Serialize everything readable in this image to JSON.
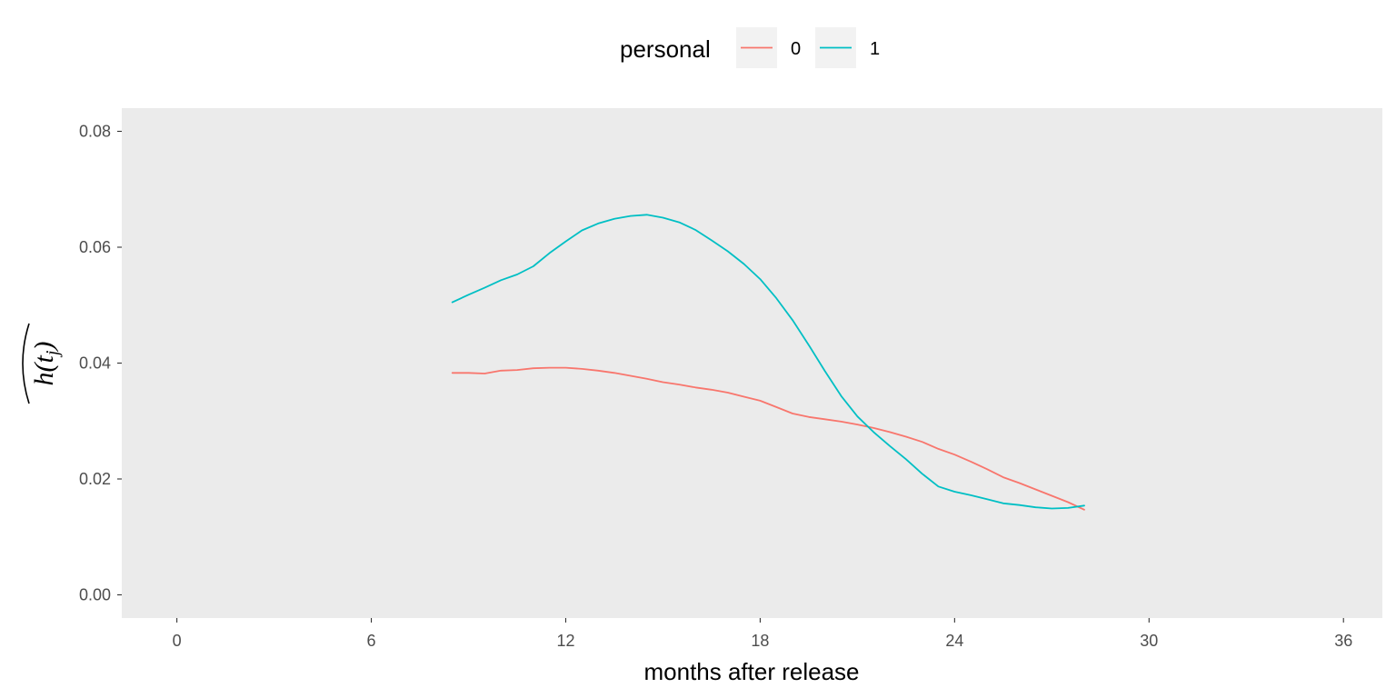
{
  "chart_data": {
    "type": "line",
    "title": "",
    "xlabel": "months after release",
    "ylabel": "h(t_j) hat",
    "xlim": [
      -1.7,
      37.2
    ],
    "ylim": [
      -0.004,
      0.084
    ],
    "x_ticks": [
      0,
      6,
      12,
      18,
      24,
      30,
      36
    ],
    "y_ticks": [
      0.0,
      0.02,
      0.04,
      0.06,
      0.08
    ],
    "y_tick_labels": [
      "0.00",
      "0.02",
      "0.04",
      "0.06",
      "0.08"
    ],
    "grid": false,
    "legend": {
      "title": "personal",
      "position": "top"
    },
    "series": [
      {
        "name": "0",
        "color": "#F8766D",
        "x": [
          8.5,
          9.0,
          9.5,
          10.0,
          10.5,
          11.0,
          11.5,
          12.0,
          12.5,
          13.0,
          13.5,
          14.0,
          14.5,
          15.0,
          15.5,
          16.0,
          16.5,
          17.0,
          17.5,
          18.0,
          18.5,
          19.0,
          19.5,
          20.0,
          20.5,
          21.0,
          21.5,
          22.0,
          22.5,
          23.0,
          23.5,
          24.0,
          24.5,
          25.0,
          25.5,
          26.0,
          26.5,
          27.0,
          27.5,
          28.0
        ],
        "y": [
          0.0383,
          0.0383,
          0.0382,
          0.0387,
          0.0388,
          0.0391,
          0.0392,
          0.0392,
          0.039,
          0.0387,
          0.0383,
          0.0378,
          0.0373,
          0.0367,
          0.0363,
          0.0358,
          0.0354,
          0.0349,
          0.0342,
          0.0335,
          0.0324,
          0.0313,
          0.0307,
          0.0303,
          0.0299,
          0.0294,
          0.0288,
          0.0281,
          0.0273,
          0.0264,
          0.0252,
          0.0242,
          0.023,
          0.0217,
          0.0203,
          0.0193,
          0.0182,
          0.0171,
          0.016,
          0.0147
        ]
      },
      {
        "name": "1",
        "color": "#00BFC4",
        "x": [
          8.5,
          9.0,
          9.5,
          10.0,
          10.5,
          11.0,
          11.5,
          12.0,
          12.5,
          13.0,
          13.5,
          14.0,
          14.5,
          15.0,
          15.5,
          16.0,
          16.5,
          17.0,
          17.5,
          18.0,
          18.5,
          19.0,
          19.5,
          20.0,
          20.5,
          21.0,
          21.5,
          22.0,
          22.5,
          23.0,
          23.5,
          24.0,
          24.5,
          25.0,
          25.5,
          26.0,
          26.5,
          27.0,
          27.5,
          28.0
        ],
        "y": [
          0.0505,
          0.0518,
          0.053,
          0.0543,
          0.0553,
          0.0567,
          0.059,
          0.061,
          0.0629,
          0.0641,
          0.0649,
          0.0654,
          0.0656,
          0.0651,
          0.0643,
          0.063,
          0.0612,
          0.0593,
          0.0571,
          0.0545,
          0.0512,
          0.0474,
          0.0431,
          0.0386,
          0.0343,
          0.0308,
          0.0281,
          0.0257,
          0.0234,
          0.0209,
          0.0187,
          0.0178,
          0.0172,
          0.0165,
          0.0158,
          0.0155,
          0.0151,
          0.0149,
          0.015,
          0.0154
        ]
      }
    ]
  }
}
